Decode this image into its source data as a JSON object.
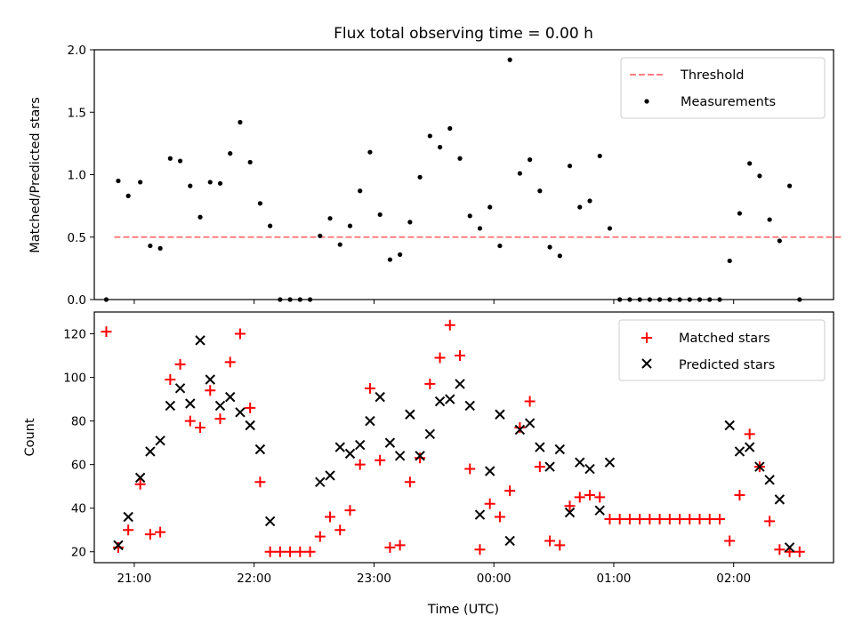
{
  "chart_data": [
    {
      "type": "scatter",
      "title": "Flux total observing time = 0.00 h",
      "ylabel": "Matched/Predicted stars",
      "xlabel": "",
      "xlim": [
        "20:40",
        "02:50"
      ],
      "ylim": [
        0,
        2.0
      ],
      "yticks": [
        "0.0",
        "0.5",
        "1.0",
        "1.5",
        "2.0"
      ],
      "grid": false,
      "legend_position": "upper-right",
      "threshold": {
        "name": "Threshold",
        "value": 0.5,
        "x_start": "20:50",
        "x_end": "02:55",
        "color": "#ff7f7f",
        "style": "dashed"
      },
      "series": [
        {
          "name": "Measurements",
          "color": "#000000",
          "points": [
            [
              "20:46",
              0.0
            ],
            [
              "20:52",
              0.95
            ],
            [
              "20:57",
              0.83
            ],
            [
              "21:03",
              0.94
            ],
            [
              "21:08",
              0.43
            ],
            [
              "21:13",
              0.41
            ],
            [
              "21:18",
              1.13
            ],
            [
              "21:23",
              1.11
            ],
            [
              "21:28",
              0.91
            ],
            [
              "21:33",
              0.66
            ],
            [
              "21:38",
              0.94
            ],
            [
              "21:43",
              0.93
            ],
            [
              "21:48",
              1.17
            ],
            [
              "21:53",
              1.42
            ],
            [
              "21:58",
              1.1
            ],
            [
              "22:03",
              0.77
            ],
            [
              "22:08",
              0.59
            ],
            [
              "22:13",
              0.0
            ],
            [
              "22:18",
              0.0
            ],
            [
              "22:23",
              0.0
            ],
            [
              "22:28",
              0.0
            ],
            [
              "22:33",
              0.51
            ],
            [
              "22:38",
              0.65
            ],
            [
              "22:43",
              0.44
            ],
            [
              "22:48",
              0.59
            ],
            [
              "22:53",
              0.87
            ],
            [
              "22:58",
              1.18
            ],
            [
              "23:03",
              0.68
            ],
            [
              "23:08",
              0.32
            ],
            [
              "23:13",
              0.36
            ],
            [
              "23:18",
              0.62
            ],
            [
              "23:23",
              0.98
            ],
            [
              "23:28",
              1.31
            ],
            [
              "23:33",
              1.22
            ],
            [
              "23:38",
              1.37
            ],
            [
              "23:43",
              1.13
            ],
            [
              "23:48",
              0.67
            ],
            [
              "23:53",
              0.57
            ],
            [
              "23:58",
              0.74
            ],
            [
              "00:03",
              0.43
            ],
            [
              "00:08",
              1.92
            ],
            [
              "00:13",
              1.01
            ],
            [
              "00:18",
              1.12
            ],
            [
              "00:23",
              0.87
            ],
            [
              "00:28",
              0.42
            ],
            [
              "00:33",
              0.35
            ],
            [
              "00:38",
              1.07
            ],
            [
              "00:43",
              0.74
            ],
            [
              "00:48",
              0.79
            ],
            [
              "00:53",
              1.15
            ],
            [
              "00:58",
              0.57
            ],
            [
              "01:03",
              0.0
            ],
            [
              "01:08",
              0.0
            ],
            [
              "01:13",
              0.0
            ],
            [
              "01:18",
              0.0
            ],
            [
              "01:23",
              0.0
            ],
            [
              "01:28",
              0.0
            ],
            [
              "01:33",
              0.0
            ],
            [
              "01:38",
              0.0
            ],
            [
              "01:43",
              0.0
            ],
            [
              "01:48",
              0.0
            ],
            [
              "01:53",
              0.0
            ],
            [
              "01:58",
              0.31
            ],
            [
              "02:03",
              0.69
            ],
            [
              "02:08",
              1.09
            ],
            [
              "02:13",
              0.99
            ],
            [
              "02:18",
              0.64
            ],
            [
              "02:23",
              0.47
            ],
            [
              "02:28",
              0.91
            ],
            [
              "02:33",
              0.0
            ]
          ]
        }
      ]
    },
    {
      "type": "scatter",
      "title": "",
      "ylabel": "Count",
      "xlabel": "Time (UTC)",
      "xlim": [
        "20:40",
        "02:50"
      ],
      "xticks": [
        "21:00",
        "22:00",
        "23:00",
        "00:00",
        "01:00",
        "02:00"
      ],
      "ylim": [
        15,
        130
      ],
      "yticks": [
        "20",
        "40",
        "60",
        "80",
        "100",
        "120"
      ],
      "grid": false,
      "legend_position": "upper-right",
      "series": [
        {
          "name": "Matched stars",
          "color": "#ff0000",
          "marker": "plus",
          "points": [
            [
              "20:46",
              121
            ],
            [
              "20:52",
              22
            ],
            [
              "20:57",
              30
            ],
            [
              "21:03",
              51
            ],
            [
              "21:08",
              28
            ],
            [
              "21:13",
              29
            ],
            [
              "21:18",
              99
            ],
            [
              "21:23",
              106
            ],
            [
              "21:28",
              80
            ],
            [
              "21:33",
              77
            ],
            [
              "21:38",
              94
            ],
            [
              "21:43",
              81
            ],
            [
              "21:48",
              107
            ],
            [
              "21:53",
              120
            ],
            [
              "21:58",
              86
            ],
            [
              "22:03",
              52
            ],
            [
              "22:08",
              20
            ],
            [
              "22:13",
              20
            ],
            [
              "22:18",
              20
            ],
            [
              "22:23",
              20
            ],
            [
              "22:28",
              20
            ],
            [
              "22:33",
              27
            ],
            [
              "22:38",
              36
            ],
            [
              "22:43",
              30
            ],
            [
              "22:48",
              39
            ],
            [
              "22:53",
              60
            ],
            [
              "22:58",
              95
            ],
            [
              "23:03",
              62
            ],
            [
              "23:08",
              22
            ],
            [
              "23:13",
              23
            ],
            [
              "23:18",
              52
            ],
            [
              "23:23",
              63
            ],
            [
              "23:28",
              97
            ],
            [
              "23:33",
              109
            ],
            [
              "23:38",
              124
            ],
            [
              "23:43",
              110
            ],
            [
              "23:48",
              58
            ],
            [
              "23:53",
              21
            ],
            [
              "23:58",
              42
            ],
            [
              "00:03",
              36
            ],
            [
              "00:08",
              48
            ],
            [
              "00:13",
              77
            ],
            [
              "00:18",
              89
            ],
            [
              "00:23",
              59
            ],
            [
              "00:28",
              25
            ],
            [
              "00:33",
              23
            ],
            [
              "00:38",
              41
            ],
            [
              "00:43",
              45
            ],
            [
              "00:48",
              46
            ],
            [
              "00:53",
              45
            ],
            [
              "00:58",
              35
            ],
            [
              "01:03",
              35
            ],
            [
              "01:08",
              35
            ],
            [
              "01:13",
              35
            ],
            [
              "01:18",
              35
            ],
            [
              "01:23",
              35
            ],
            [
              "01:28",
              35
            ],
            [
              "01:33",
              35
            ],
            [
              "01:38",
              35
            ],
            [
              "01:43",
              35
            ],
            [
              "01:48",
              35
            ],
            [
              "01:53",
              35
            ],
            [
              "01:58",
              25
            ],
            [
              "02:03",
              46
            ],
            [
              "02:08",
              74
            ],
            [
              "02:13",
              59
            ],
            [
              "02:18",
              34
            ],
            [
              "02:23",
              21
            ],
            [
              "02:28",
              20
            ],
            [
              "02:33",
              20
            ]
          ]
        },
        {
          "name": "Predicted stars",
          "color": "#000000",
          "marker": "x",
          "points": [
            [
              "20:52",
              23
            ],
            [
              "20:57",
              36
            ],
            [
              "21:03",
              54
            ],
            [
              "21:08",
              66
            ],
            [
              "21:13",
              71
            ],
            [
              "21:18",
              87
            ],
            [
              "21:23",
              95
            ],
            [
              "21:28",
              88
            ],
            [
              "21:33",
              117
            ],
            [
              "21:38",
              99
            ],
            [
              "21:43",
              87
            ],
            [
              "21:48",
              91
            ],
            [
              "21:53",
              84
            ],
            [
              "21:58",
              78
            ],
            [
              "22:03",
              67
            ],
            [
              "22:08",
              34
            ],
            [
              "22:33",
              52
            ],
            [
              "22:38",
              55
            ],
            [
              "22:43",
              68
            ],
            [
              "22:48",
              65
            ],
            [
              "22:53",
              69
            ],
            [
              "22:58",
              80
            ],
            [
              "23:03",
              91
            ],
            [
              "23:08",
              70
            ],
            [
              "23:13",
              64
            ],
            [
              "23:18",
              83
            ],
            [
              "23:23",
              64
            ],
            [
              "23:28",
              74
            ],
            [
              "23:33",
              89
            ],
            [
              "23:38",
              90
            ],
            [
              "23:43",
              97
            ],
            [
              "23:48",
              87
            ],
            [
              "23:53",
              37
            ],
            [
              "23:58",
              57
            ],
            [
              "00:03",
              83
            ],
            [
              "00:08",
              25
            ],
            [
              "00:13",
              76
            ],
            [
              "00:18",
              79
            ],
            [
              "00:23",
              68
            ],
            [
              "00:28",
              59
            ],
            [
              "00:33",
              67
            ],
            [
              "00:38",
              38
            ],
            [
              "00:43",
              61
            ],
            [
              "00:48",
              58
            ],
            [
              "00:53",
              39
            ],
            [
              "00:58",
              61
            ],
            [
              "01:58",
              78
            ],
            [
              "02:03",
              66
            ],
            [
              "02:08",
              68
            ],
            [
              "02:13",
              59
            ],
            [
              "02:18",
              53
            ],
            [
              "02:23",
              44
            ],
            [
              "02:28",
              22
            ]
          ]
        }
      ]
    }
  ]
}
